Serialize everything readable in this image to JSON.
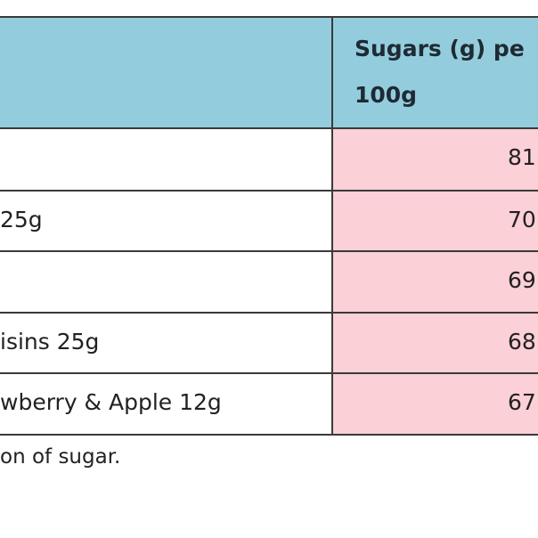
{
  "table": {
    "header_lines": [
      "Sugars (g) pe",
      "100g"
    ],
    "rows": [
      {
        "value": 81
      },
      {
        "label": "25g",
        "value": 70
      },
      {
        "value": 69
      },
      {
        "label": "isins 25g",
        "value": 68
      },
      {
        "label": "wberry & Apple 12g",
        "value": 67
      }
    ],
    "footnote": "on of sugar."
  }
}
